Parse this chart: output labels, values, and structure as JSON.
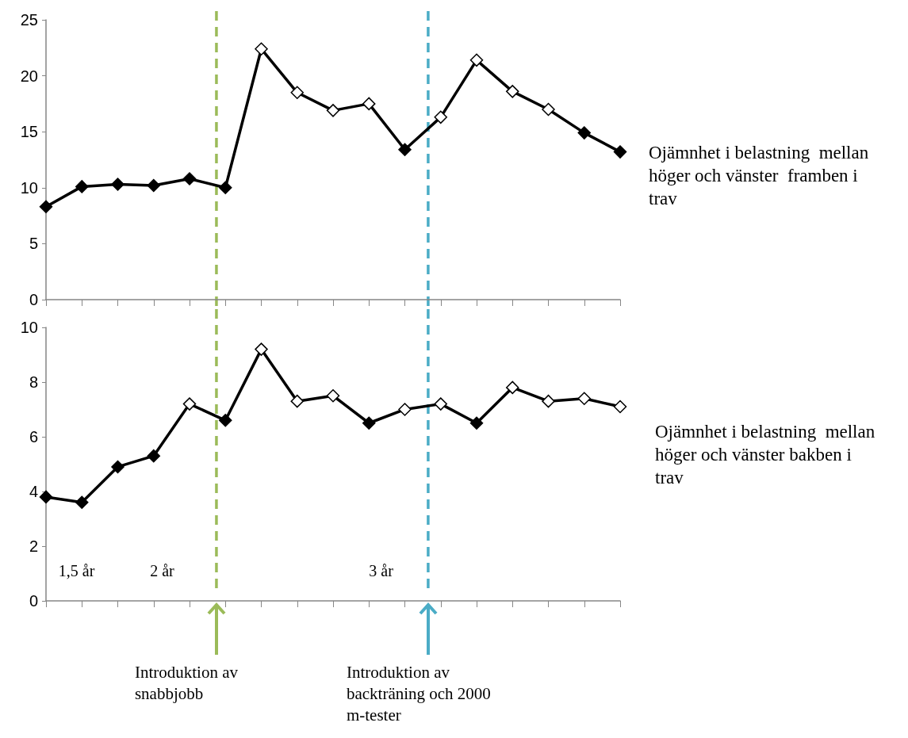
{
  "chart_data": [
    {
      "type": "line",
      "marker": "diamond",
      "line_style": "solid",
      "tick_labels": "y",
      "ylim": [
        0,
        25
      ],
      "yticks": [
        0,
        5,
        10,
        15,
        20,
        25
      ],
      "categories": [
        null,
        null,
        null,
        null,
        null,
        null,
        null,
        null,
        null,
        null,
        null,
        null,
        null,
        null,
        null,
        null,
        null
      ],
      "series": [
        {
          "name": "Ojämnhet i belastning  mellan höger och vänster  framben i trav",
          "color": "#000000",
          "values": [
            8.3,
            10.1,
            10.3,
            10.2,
            10.8,
            10.0,
            22.4,
            18.5,
            16.9,
            17.5,
            13.4,
            16.3,
            21.4,
            18.6,
            17.0,
            14.9,
            13.2
          ],
          "colors": [
            "#000000",
            "#000000",
            "#000000",
            "#000000",
            "#000000",
            "#000000",
            "#ffffff",
            "#ffffff",
            "#ffffff",
            "#ffffff",
            "#000000",
            "#ffffff",
            "#ffffff",
            "#ffffff",
            "#ffffff",
            "#000000",
            "#000000"
          ]
        }
      ],
      "grid": false
    },
    {
      "type": "line",
      "marker": "diamond",
      "line_style": "solid",
      "tick_labels": "y",
      "ylim": [
        0,
        10
      ],
      "yticks": [
        0,
        2,
        4,
        6,
        8,
        10
      ],
      "categories": [
        null,
        null,
        null,
        null,
        null,
        null,
        null,
        null,
        null,
        null,
        null,
        null,
        null,
        null,
        null,
        null,
        null
      ],
      "series": [
        {
          "name": "Ojämnhet i belastning  mellan höger och vänster bakben i trav",
          "color": "#000000",
          "values": [
            3.8,
            3.6,
            4.9,
            5.3,
            7.2,
            6.6,
            9.2,
            7.3,
            7.5,
            6.5,
            7.0,
            7.2,
            6.5,
            7.8,
            7.3,
            7.4,
            7.1
          ],
          "colors": [
            "#000000",
            "#000000",
            "#000000",
            "#000000",
            "#ffffff",
            "#000000",
            "#ffffff",
            "#ffffff",
            "#ffffff",
            "#000000",
            "#ffffff",
            "#ffffff",
            "#000000",
            "#ffffff",
            "#ffffff",
            "#ffffff",
            "#ffffff"
          ]
        }
      ],
      "annotations": [
        "1,5 år",
        "2 år",
        "3 år",
        "Introduktion av snabbjobb",
        "Introduktion av backträning och 2000 m-tester"
      ]
    }
  ]
}
